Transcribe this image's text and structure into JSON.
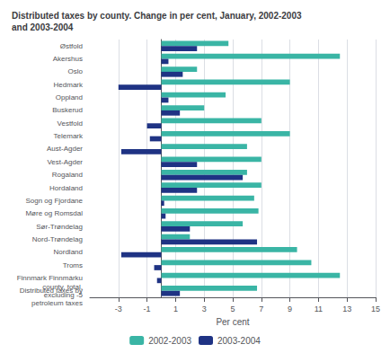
{
  "chart_data": {
    "type": "bar",
    "orientation": "horizontal",
    "title": "Distributed taxes by county. Change in per cent, January, 2002-2003\nand 2003-2004",
    "categories": [
      "Østfold",
      "Akershus",
      "Oslo",
      "Hedmark",
      "Oppland",
      "Buskerud",
      "Vestfold",
      "Telemark",
      "Aust-Agder",
      "Vest-Agder",
      "Rogaland",
      "Hordaland",
      "Sogn og Fjordane",
      "Møre og Romsdal",
      "Sør-Trøndelag",
      "Nord-Trøndelag",
      "Nordland",
      "Troms",
      "Finnmark Finnmárku",
      "Distributed taxes by\ncounty, total,\nexcluding -5\npetroleum taxes"
    ],
    "series": [
      {
        "name": "2002-2003",
        "color": "#3ab5a5",
        "values": [
          4.7,
          12.5,
          2.5,
          9.0,
          4.5,
          3.0,
          7.0,
          9.0,
          6.0,
          7.0,
          6.0,
          7.0,
          6.5,
          6.8,
          5.7,
          2.0,
          9.5,
          10.5,
          12.5,
          6.7
        ]
      },
      {
        "name": "2003-2004",
        "color": "#1f3384",
        "values": [
          2.5,
          0.5,
          1.5,
          -3.0,
          0.5,
          1.3,
          -1.0,
          -0.8,
          -2.8,
          2.5,
          5.7,
          2.5,
          0.2,
          0.3,
          2.0,
          6.7,
          -2.8,
          -0.5,
          -0.3,
          1.3
        ]
      }
    ],
    "xlabel": "Per cent",
    "xlim": [
      -5,
      15
    ],
    "xticks": [
      -3,
      -1,
      1,
      3,
      5,
      7,
      9,
      11,
      13,
      15
    ],
    "grid": true,
    "legend": "bottom"
  }
}
